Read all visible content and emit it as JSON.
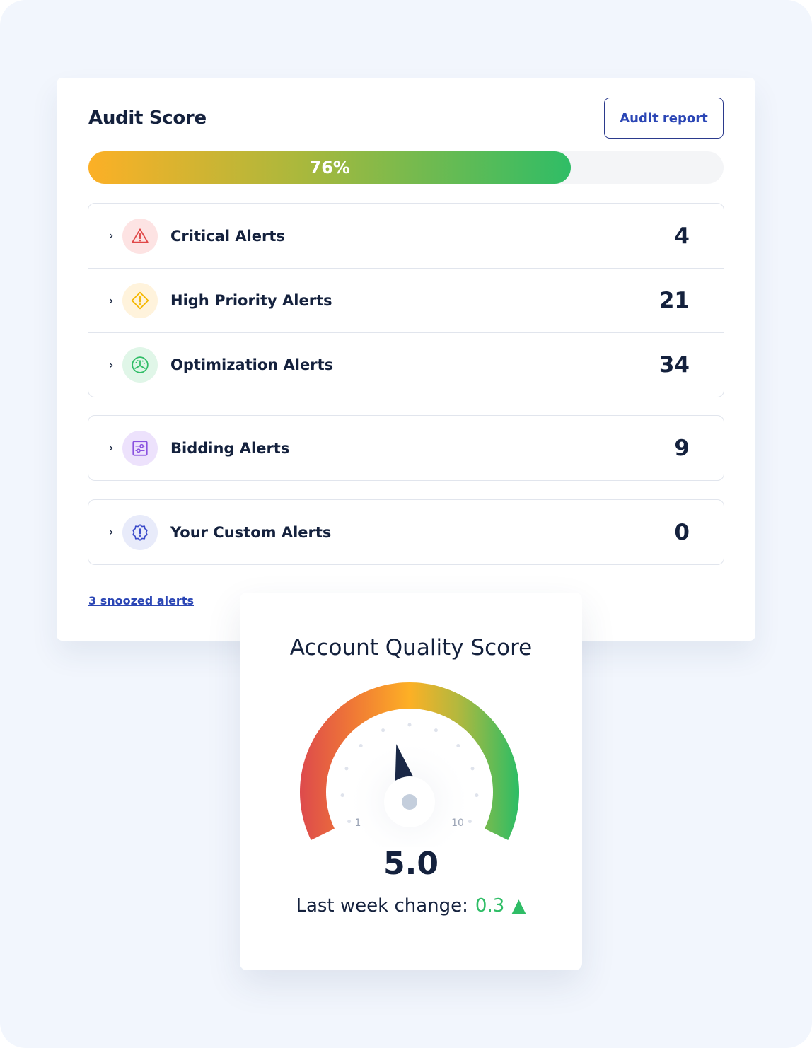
{
  "audit": {
    "title": "Audit Score",
    "report_button": "Audit report",
    "progress_label": "76%",
    "progress": 76,
    "groups": [
      [
        {
          "label": "Critical Alerts",
          "count": "4",
          "icon": "warning-triangle-icon",
          "color": "#e04848",
          "bg": "#fde3e3"
        },
        {
          "label": "High Priority Alerts",
          "count": "21",
          "icon": "warning-diamond-icon",
          "color": "#f5b800",
          "bg": "#fff3dc"
        },
        {
          "label": "Optimization Alerts",
          "count": "34",
          "icon": "speedometer-icon",
          "color": "#2fbd66",
          "bg": "#e0f6e8"
        }
      ],
      [
        {
          "label": "Bidding Alerts",
          "count": "9",
          "icon": "sliders-icon",
          "color": "#8a52e0",
          "bg": "#ede2fc"
        }
      ],
      [
        {
          "label": "Your Custom Alerts",
          "count": "0",
          "icon": "badge-alert-icon",
          "color": "#3949c9",
          "bg": "#e8ebfa"
        }
      ]
    ],
    "snoozed": "3 snoozed alerts"
  },
  "quality": {
    "title": "Account Quality Score",
    "score": "5.0",
    "min_label": "1",
    "max_label": "10",
    "value": 5.0,
    "change_label": "Last week change:",
    "change_value": "0.3",
    "change_direction": "up",
    "change_color": "#2fbd66"
  }
}
